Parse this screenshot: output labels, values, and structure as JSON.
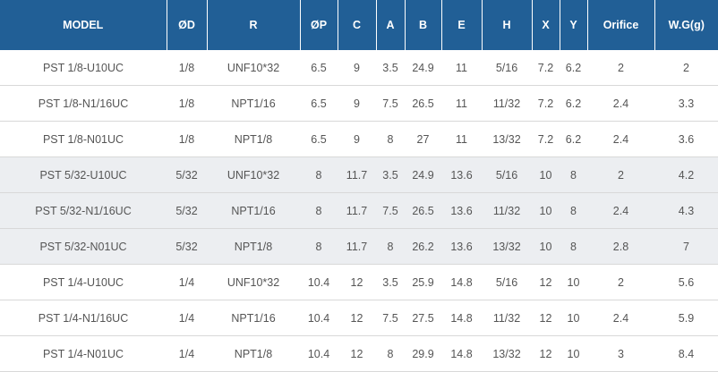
{
  "headers": [
    "MODEL",
    "ØD",
    "R",
    "ØP",
    "C",
    "A",
    "B",
    "E",
    "H",
    "X",
    "Y",
    "Orifice",
    "W.G(g)"
  ],
  "rows": [
    {
      "shaded": false,
      "cells": [
        "PST 1/8-U10UC",
        "1/8",
        "UNF10*32",
        "6.5",
        "9",
        "3.5",
        "24.9",
        "11",
        "5/16",
        "7.2",
        "6.2",
        "2",
        "2"
      ]
    },
    {
      "shaded": false,
      "cells": [
        "PST 1/8-N1/16UC",
        "1/8",
        "NPT1/16",
        "6.5",
        "9",
        "7.5",
        "26.5",
        "11",
        "11/32",
        "7.2",
        "6.2",
        "2.4",
        "3.3"
      ]
    },
    {
      "shaded": false,
      "cells": [
        "PST 1/8-N01UC",
        "1/8",
        "NPT1/8",
        "6.5",
        "9",
        "8",
        "27",
        "11",
        "13/32",
        "7.2",
        "6.2",
        "2.4",
        "3.6"
      ]
    },
    {
      "shaded": true,
      "cells": [
        "PST 5/32-U10UC",
        "5/32",
        "UNF10*32",
        "8",
        "11.7",
        "3.5",
        "24.9",
        "13.6",
        "5/16",
        "10",
        "8",
        "2",
        "4.2"
      ]
    },
    {
      "shaded": true,
      "cells": [
        "PST 5/32-N1/16UC",
        "5/32",
        "NPT1/16",
        "8",
        "11.7",
        "7.5",
        "26.5",
        "13.6",
        "11/32",
        "10",
        "8",
        "2.4",
        "4.3"
      ]
    },
    {
      "shaded": true,
      "cells": [
        "PST 5/32-N01UC",
        "5/32",
        "NPT1/8",
        "8",
        "11.7",
        "8",
        "26.2",
        "13.6",
        "13/32",
        "10",
        "8",
        "2.8",
        "7"
      ]
    },
    {
      "shaded": false,
      "cells": [
        "PST 1/4-U10UC",
        "1/4",
        "UNF10*32",
        "10.4",
        "12",
        "3.5",
        "25.9",
        "14.8",
        "5/16",
        "12",
        "10",
        "2",
        "5.6"
      ]
    },
    {
      "shaded": false,
      "cells": [
        "PST 1/4-N1/16UC",
        "1/4",
        "NPT1/16",
        "10.4",
        "12",
        "7.5",
        "27.5",
        "14.8",
        "11/32",
        "12",
        "10",
        "2.4",
        "5.9"
      ]
    },
    {
      "shaded": false,
      "cells": [
        "PST 1/4-N01UC",
        "1/4",
        "NPT1/8",
        "10.4",
        "12",
        "8",
        "29.9",
        "14.8",
        "13/32",
        "12",
        "10",
        "3",
        "8.4"
      ]
    }
  ]
}
